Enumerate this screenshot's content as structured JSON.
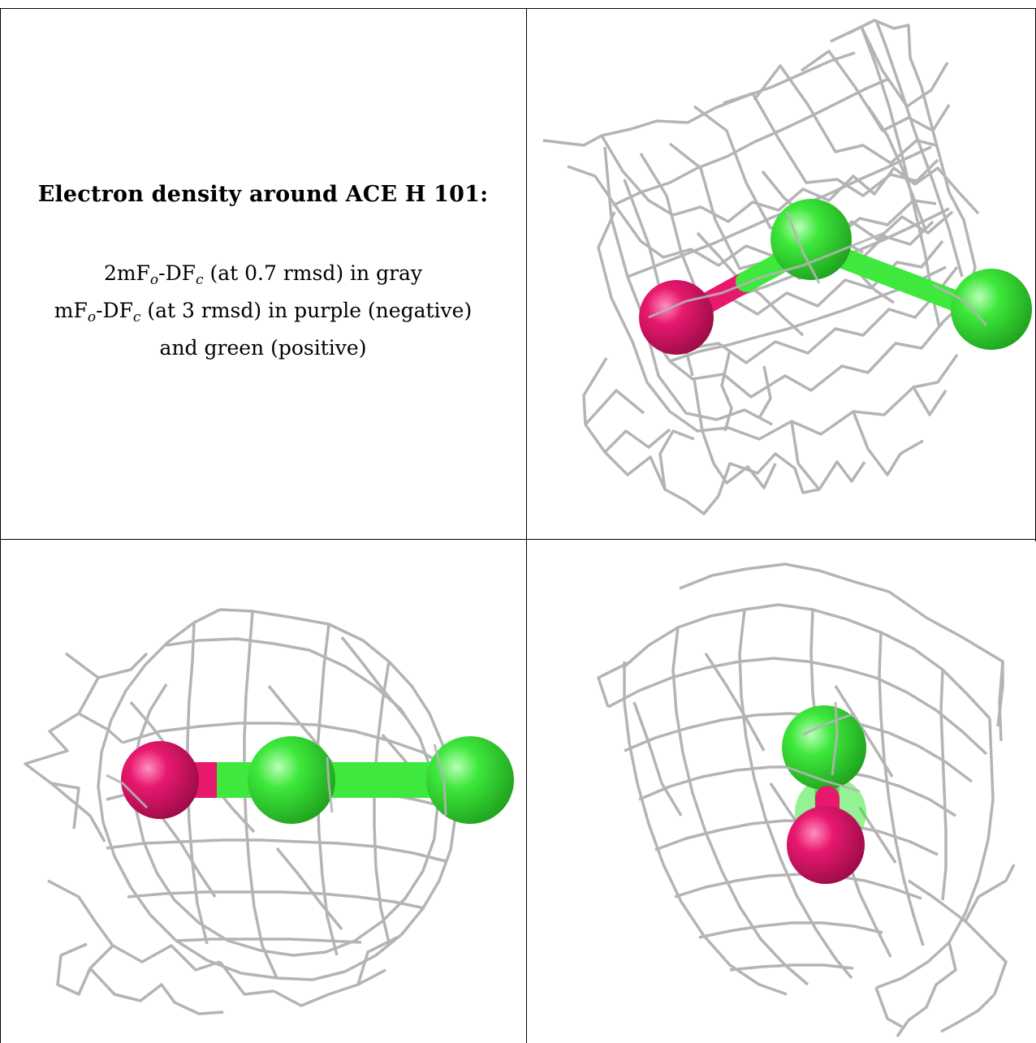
{
  "caption": {
    "title": "Electron density around ACE H 101:",
    "line1": {
      "a": "2mF",
      "b": "o",
      "c": "-DF",
      "d": "c",
      "e": " (at 0.7 rmsd) in gray"
    },
    "line2": {
      "a": "mF",
      "b": "o",
      "c": "-DF",
      "d": "c",
      "e": " (at 3 rmsd) in purple (negative)"
    },
    "line3": "and green (positive)"
  },
  "colors": {
    "mesh": "#b4b4b4",
    "atom_magenta": "#e8186f",
    "atom_green": "#3ee83c",
    "border": "#000000"
  },
  "views": [
    {
      "name": "view-top-right",
      "atoms": [
        "magenta",
        "green",
        "green"
      ]
    },
    {
      "name": "view-bottom-left",
      "atoms": [
        "magenta",
        "green",
        "green"
      ]
    },
    {
      "name": "view-bottom-right",
      "atoms": [
        "green",
        "magenta"
      ]
    }
  ]
}
